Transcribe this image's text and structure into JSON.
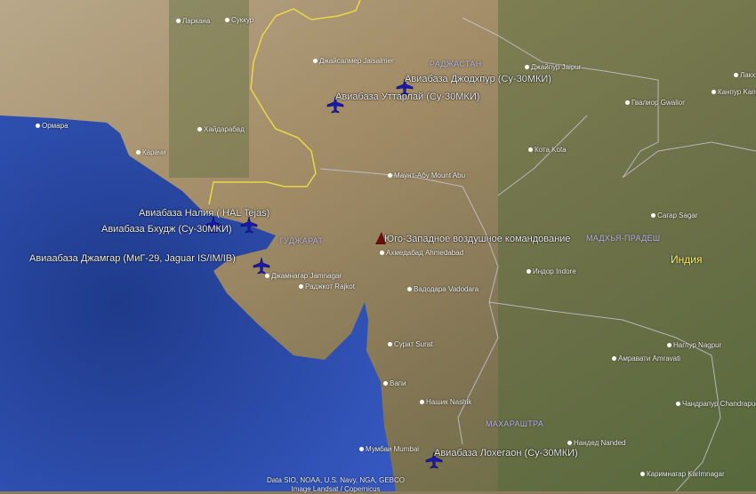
{
  "colors": {
    "ocean": "#2c4a9e",
    "land": "#8e7c5c",
    "border_international": "#e8d84a",
    "border_state": "#c8c8d8",
    "plane_marker": "#1a1ab0",
    "hq_marker": "#6a0d0d",
    "state_label": "#b9b3e6",
    "country_label": "#ffef5a"
  },
  "airbases": [
    {
      "label": "Авиабаза Джодхпур (Су-30МКИ)",
      "icon": "airplane-icon"
    },
    {
      "label": "Авиабаза Уттарлай (Су-30МКИ)",
      "icon": "airplane-icon"
    },
    {
      "label": "Авиабаза Налия ( HAL Tejas)",
      "icon": "airplane-icon"
    },
    {
      "label": "Авиабаза Бхудж (Су-30МКИ)",
      "icon": "airplane-icon"
    },
    {
      "label": "Авиаабаза Джамгар (МиГ-29, Jaguar IS/IM/IB)",
      "icon": "airplane-icon"
    },
    {
      "label": "Авиабаза Лохегаон (Су-30МКИ)",
      "icon": "airplane-icon"
    }
  ],
  "command": {
    "label": "Юго-Западное воздушное командование",
    "icon": "command-marker-icon"
  },
  "cities": [
    "Ларкана",
    "Суккур",
    "Джайсалмер Jaisalmer",
    "Джайпур Jaipur",
    "Лакхнау",
    "Канпур Kanpur",
    "Гвалиор Gwalior",
    "Кота Kota",
    "Хайдарабад",
    "Ормара",
    "Карачи",
    "Маунт-Абу Mount Abu",
    "Ахмедабад Ahmedabad",
    "Индор Indore",
    "Сагар Sagar",
    "Джамнагар Jamnagar",
    "Раджкот Rajkot",
    "Вадодара Vadodara",
    "Сурат Surat",
    "Вапи",
    "Нашик Nashik",
    "Мумбаи Mumbai",
    "Нагпур Nagpur",
    "Амравати Amravati",
    "Чандрапур Chandrapur",
    "Нандед Nanded",
    "Каримнагар Karimnagar"
  ],
  "states": [
    "РАДЖАСТАН",
    "ГУДЖАРАТ",
    "МАДХЬЯ-ПРАДЕШ",
    "МАХАРАШТРА"
  ],
  "country": "Индия",
  "credits": {
    "line1": "Data SIO, NOAA, U.S. Navy, NGA, GEBCO",
    "line2": "Image Landsat / Copernicus"
  }
}
